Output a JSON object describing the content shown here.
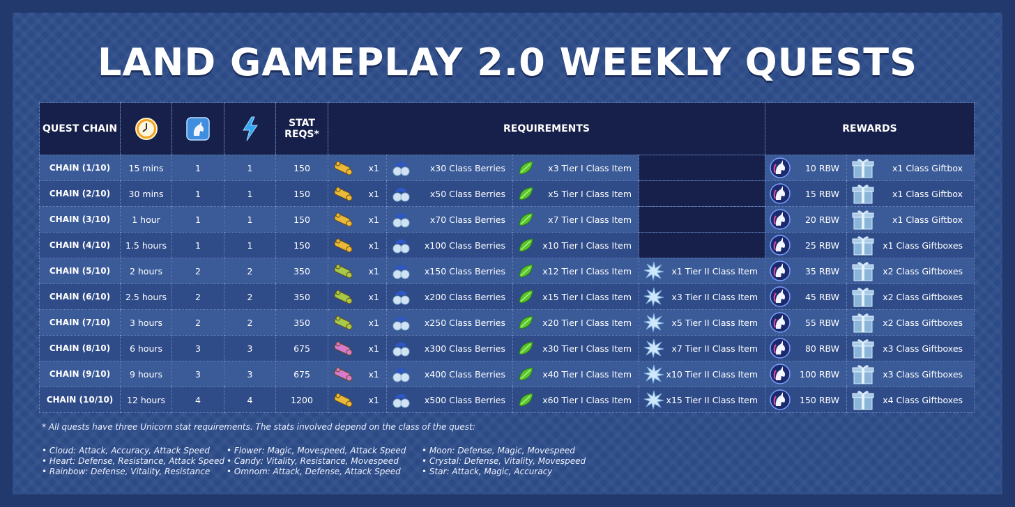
{
  "title": "LAND GAMEPLAY 2.0 WEEKLY QUESTS",
  "headers": {
    "quest_chain": "QUEST CHAIN",
    "time_icon": "clock-icon",
    "unicorn_icon": "unicorn-portrait-icon",
    "energy_icon": "lightning-icon",
    "stat_reqs_line1": "STAT",
    "stat_reqs_line2": "REQS*",
    "requirements": "REQUIREMENTS",
    "rewards": "REWARDS"
  },
  "rows": [
    {
      "chain": "CHAIN (1/10)",
      "time": "15 mins",
      "unicorns": "1",
      "energy": "1",
      "stat": "150",
      "item_icon": "gold-item",
      "item_qty": "x1",
      "berries": "x30 Class Berries",
      "tier1": "x3 Tier I Class Item",
      "tier2": "",
      "rbw": "10 RBW",
      "giftbox": "x1 Class Giftbox"
    },
    {
      "chain": "CHAIN (2/10)",
      "time": "30 mins",
      "unicorns": "1",
      "energy": "1",
      "stat": "150",
      "item_icon": "gold-item",
      "item_qty": "x1",
      "berries": "x50 Class Berries",
      "tier1": "x5 Tier I Class Item",
      "tier2": "",
      "rbw": "15 RBW",
      "giftbox": "x1 Class Giftbox"
    },
    {
      "chain": "CHAIN (3/10)",
      "time": "1 hour",
      "unicorns": "1",
      "energy": "1",
      "stat": "150",
      "item_icon": "gold-item",
      "item_qty": "x1",
      "berries": "x70 Class Berries",
      "tier1": "x7 Tier I Class Item",
      "tier2": "",
      "rbw": "20 RBW",
      "giftbox": "x1 Class Giftbox"
    },
    {
      "chain": "CHAIN (4/10)",
      "time": "1.5 hours",
      "unicorns": "1",
      "energy": "1",
      "stat": "150",
      "item_icon": "gold-item",
      "item_qty": "x1",
      "berries": "x100 Class Berries",
      "tier1": "x10 Tier I Class Item",
      "tier2": "",
      "rbw": "25 RBW",
      "giftbox": "x1 Class Giftboxes"
    },
    {
      "chain": "CHAIN (5/10)",
      "time": "2 hours",
      "unicorns": "2",
      "energy": "2",
      "stat": "350",
      "item_icon": "green-item",
      "item_qty": "x1",
      "berries": "x150 Class Berries",
      "tier1": "x12 Tier I Class Item",
      "tier2": "x1 Tier II Class Item",
      "rbw": "35 RBW",
      "giftbox": "x2 Class Giftboxes"
    },
    {
      "chain": "CHAIN (6/10)",
      "time": "2.5 hours",
      "unicorns": "2",
      "energy": "2",
      "stat": "350",
      "item_icon": "green-item",
      "item_qty": "x1",
      "berries": "x200 Class Berries",
      "tier1": "x15 Tier I Class Item",
      "tier2": "x3 Tier II Class Item",
      "rbw": "45 RBW",
      "giftbox": "x2 Class Giftboxes"
    },
    {
      "chain": "CHAIN (7/10)",
      "time": "3 hours",
      "unicorns": "2",
      "energy": "2",
      "stat": "350",
      "item_icon": "green-item",
      "item_qty": "x1",
      "berries": "x250 Class Berries",
      "tier1": "x20 Tier I Class Item",
      "tier2": "x5 Tier II Class Item",
      "rbw": "55 RBW",
      "giftbox": "x2 Class Giftboxes"
    },
    {
      "chain": "CHAIN (8/10)",
      "time": "6 hours",
      "unicorns": "3",
      "energy": "3",
      "stat": "675",
      "item_icon": "pink-item",
      "item_qty": "x1",
      "berries": "x300 Class Berries",
      "tier1": "x30 Tier I Class Item",
      "tier2": "x7 Tier II Class Item",
      "rbw": "80 RBW",
      "giftbox": "x3 Class Giftboxes"
    },
    {
      "chain": "CHAIN (9/10)",
      "time": "9 hours",
      "unicorns": "3",
      "energy": "3",
      "stat": "675",
      "item_icon": "pink-item",
      "item_qty": "x1",
      "berries": "x400 Class Berries",
      "tier1": "x40 Tier I Class Item",
      "tier2": "x10 Tier II Class Item",
      "rbw": "100 RBW",
      "giftbox": "x3 Class Giftboxes"
    },
    {
      "chain": "CHAIN (10/10)",
      "time": "12 hours",
      "unicorns": "4",
      "energy": "4",
      "stat": "1200",
      "item_icon": "gold-item",
      "item_qty": "x1",
      "berries": "x500 Class Berries",
      "tier1": "x60 Tier I Class Item",
      "tier2": "x15 Tier II Class Item",
      "rbw": "150 RBW",
      "giftbox": "x4 Class Giftboxes"
    }
  ],
  "item_colors": {
    "gold-item": "#e8b93a",
    "green-item": "#a6c94a",
    "pink-item": "#d77ad0"
  },
  "footnote": "* All quests have three Unicorn stat requirements. The stats involved depend on the class of the quest:",
  "classes_col1": [
    "Cloud: Attack, Accuracy, Attack Speed",
    "Heart: Defense, Resistance, Attack Speed",
    "Rainbow: Defense, Vitality, Resistance"
  ],
  "classes_col2": [
    "Flower: Magic, Movespeed, Attack Speed",
    "Candy: Vitality, Resistance, Movespeed",
    "Omnom: Attack, Defense, Attack Speed"
  ],
  "classes_col3": [
    "Moon: Defense, Magic, Movespeed",
    "Crystal: Defense, Vitality, Movespeed",
    "Star: Attack, Magic, Accuracy"
  ]
}
